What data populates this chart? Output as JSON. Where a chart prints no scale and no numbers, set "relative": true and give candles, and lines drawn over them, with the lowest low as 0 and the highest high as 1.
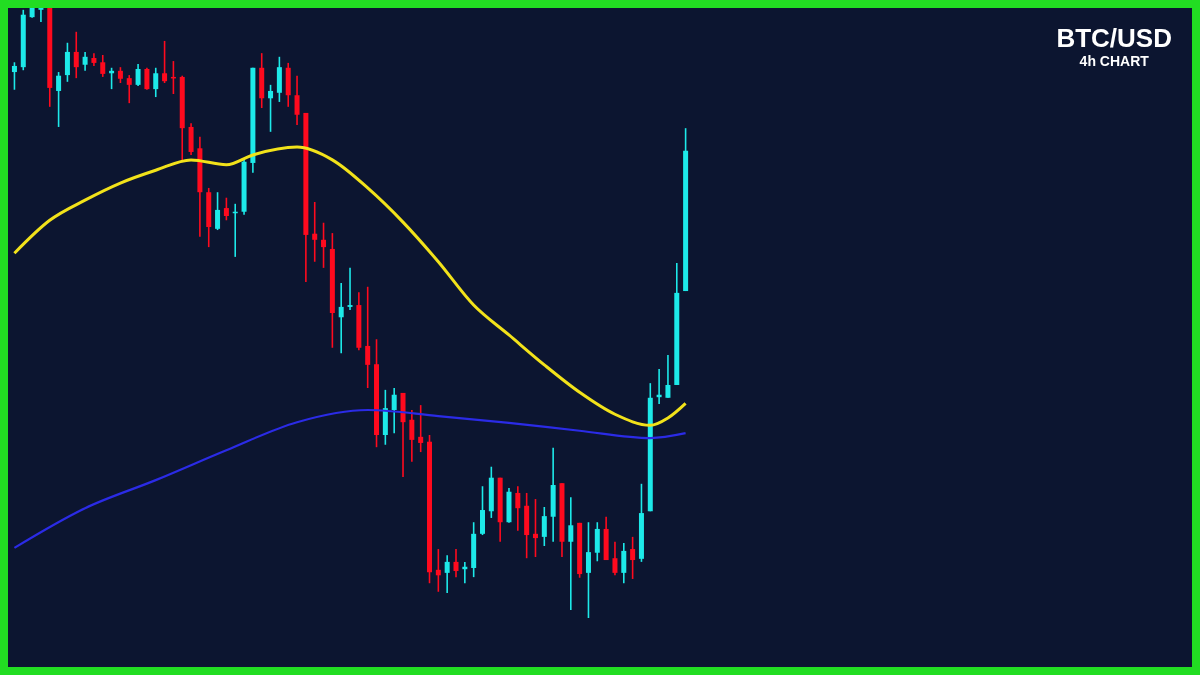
{
  "chart_data": {
    "type": "candlestick",
    "title": "BTC/USD",
    "subtitle": "4h CHART",
    "relative": true,
    "legend": false,
    "grid": false,
    "categories": [
      null,
      null,
      null,
      null,
      null,
      null,
      null,
      null,
      null,
      null,
      null,
      null,
      null,
      null,
      null,
      null,
      null,
      null,
      null,
      null,
      null,
      null,
      null,
      null,
      null,
      null,
      null,
      null,
      null,
      null,
      null,
      null,
      null,
      null,
      null,
      null,
      null,
      null,
      null,
      null,
      null,
      null,
      null,
      null,
      null,
      null,
      null,
      null,
      null,
      null,
      null,
      null,
      null,
      null,
      null,
      null,
      null,
      null,
      null,
      null,
      null,
      null,
      null,
      null,
      null,
      null,
      null,
      null,
      null,
      null,
      null,
      null,
      null,
      null,
      null,
      null,
      null
    ],
    "ohlc": [
      [
        0.895,
        0.911,
        0.866,
        0.905
      ],
      [
        0.903,
        0.997,
        0.898,
        0.989
      ],
      [
        0.985,
        1,
        0.984,
        1
      ],
      [
        0.997,
        1,
        0.977,
        1
      ],
      [
        1,
        1,
        0.838,
        0.869
      ],
      [
        0.864,
        0.895,
        0.805,
        0.889
      ],
      [
        0.89,
        0.943,
        0.879,
        0.928
      ],
      [
        0.928,
        0.961,
        0.885,
        0.903
      ],
      [
        0.907,
        0.928,
        0.897,
        0.92
      ],
      [
        0.918,
        0.926,
        0.905,
        0.91
      ],
      [
        0.911,
        0.923,
        0.887,
        0.892
      ],
      [
        0.893,
        0.902,
        0.867,
        0.897
      ],
      [
        0.897,
        0.903,
        0.877,
        0.884
      ],
      [
        0.885,
        0.89,
        0.844,
        0.874
      ],
      [
        0.874,
        0.908,
        0.872,
        0.9
      ],
      [
        0.9,
        0.902,
        0.866,
        0.867
      ],
      [
        0.867,
        0.902,
        0.854,
        0.893
      ],
      [
        0.893,
        0.946,
        0.877,
        0.88
      ],
      [
        0.887,
        0.913,
        0.859,
        0.885
      ],
      [
        0.887,
        0.889,
        0.748,
        0.803
      ],
      [
        0.805,
        0.811,
        0.759,
        0.764
      ],
      [
        0.77,
        0.789,
        0.625,
        0.698
      ],
      [
        0.698,
        0.705,
        0.608,
        0.641
      ],
      [
        0.638,
        0.698,
        0.636,
        0.669
      ],
      [
        0.672,
        0.689,
        0.652,
        0.659
      ],
      [
        0.664,
        0.679,
        0.592,
        0.666
      ],
      [
        0.666,
        0.754,
        0.661,
        0.748
      ],
      [
        0.746,
        0.902,
        0.73,
        0.902
      ],
      [
        0.902,
        0.926,
        0.836,
        0.852
      ],
      [
        0.852,
        0.874,
        0.797,
        0.864
      ],
      [
        0.861,
        0.92,
        0.846,
        0.903
      ],
      [
        0.902,
        0.91,
        0.838,
        0.857
      ],
      [
        0.857,
        0.889,
        0.808,
        0.825
      ],
      [
        0.828,
        0.828,
        0.551,
        0.628
      ],
      [
        0.63,
        0.682,
        0.584,
        0.62
      ],
      [
        0.62,
        0.648,
        0.574,
        0.608
      ],
      [
        0.605,
        0.631,
        0.443,
        0.5
      ],
      [
        0.493,
        0.549,
        0.434,
        0.51
      ],
      [
        0.51,
        0.574,
        0.505,
        0.513
      ],
      [
        0.513,
        0.534,
        0.439,
        0.443
      ],
      [
        0.446,
        0.543,
        0.377,
        0.415
      ],
      [
        0.416,
        0.457,
        0.28,
        0.3
      ],
      [
        0.3,
        0.374,
        0.284,
        0.344
      ],
      [
        0.341,
        0.377,
        0.303,
        0.366
      ],
      [
        0.369,
        0.369,
        0.231,
        0.321
      ],
      [
        0.325,
        0.341,
        0.256,
        0.292
      ],
      [
        0.297,
        0.349,
        0.272,
        0.287
      ],
      [
        0.289,
        0.3,
        0.057,
        0.075
      ],
      [
        0.079,
        0.113,
        0.043,
        0.07
      ],
      [
        0.074,
        0.103,
        0.041,
        0.092
      ],
      [
        0.092,
        0.113,
        0.067,
        0.077
      ],
      [
        0.08,
        0.092,
        0.057,
        0.084
      ],
      [
        0.082,
        0.157,
        0.067,
        0.138
      ],
      [
        0.138,
        0.216,
        0.136,
        0.177
      ],
      [
        0.175,
        0.248,
        0.164,
        0.23
      ],
      [
        0.23,
        0.23,
        0.125,
        0.157
      ],
      [
        0.157,
        0.213,
        0.156,
        0.207
      ],
      [
        0.205,
        0.216,
        0.143,
        0.18
      ],
      [
        0.184,
        0.205,
        0.098,
        0.136
      ],
      [
        0.138,
        0.195,
        0.1,
        0.131
      ],
      [
        0.133,
        0.182,
        0.118,
        0.167
      ],
      [
        0.166,
        0.279,
        0.125,
        0.218
      ],
      [
        0.221,
        0.221,
        0.1,
        0.125
      ],
      [
        0.125,
        0.198,
        0.013,
        0.152
      ],
      [
        0.156,
        0.156,
        0.066,
        0.072
      ],
      [
        0.074,
        0.157,
        0,
        0.108
      ],
      [
        0.107,
        0.157,
        0.093,
        0.146
      ],
      [
        0.146,
        0.166,
        0.095,
        0.095
      ],
      [
        0.098,
        0.125,
        0.07,
        0.074
      ],
      [
        0.074,
        0.123,
        0.057,
        0.11
      ],
      [
        0.113,
        0.133,
        0.064,
        0.095
      ],
      [
        0.097,
        0.22,
        0.092,
        0.172
      ],
      [
        0.175,
        0.385,
        0.175,
        0.361
      ],
      [
        0.362,
        0.408,
        0.351,
        0.366
      ],
      [
        0.361,
        0.431,
        0.361,
        0.382
      ],
      [
        0.382,
        0.582,
        0.382,
        0.533
      ],
      [
        0.536,
        0.803,
        0.536,
        0.766
      ]
    ],
    "colors": [
      "#1de9e9",
      "#1de9e9",
      "#1de9e9",
      "#1de9e9",
      "#ff0a1e",
      "#1de9e9",
      "#1de9e9",
      "#ff0a1e",
      "#1de9e9",
      "#ff0a1e",
      "#ff0a1e",
      "#1de9e9",
      "#ff0a1e",
      "#ff0a1e",
      "#1de9e9",
      "#ff0a1e",
      "#1de9e9",
      "#ff0a1e",
      "#ff0a1e",
      "#ff0a1e",
      "#ff0a1e",
      "#ff0a1e",
      "#ff0a1e",
      "#1de9e9",
      "#ff0a1e",
      "#1de9e9",
      "#1de9e9",
      "#1de9e9",
      "#ff0a1e",
      "#1de9e9",
      "#1de9e9",
      "#ff0a1e",
      "#ff0a1e",
      "#ff0a1e",
      "#ff0a1e",
      "#ff0a1e",
      "#ff0a1e",
      "#1de9e9",
      "#1de9e9",
      "#ff0a1e",
      "#ff0a1e",
      "#ff0a1e",
      "#1de9e9",
      "#1de9e9",
      "#ff0a1e",
      "#ff0a1e",
      "#ff0a1e",
      "#ff0a1e",
      "#ff0a1e",
      "#1de9e9",
      "#ff0a1e",
      "#1de9e9",
      "#1de9e9",
      "#1de9e9",
      "#1de9e9",
      "#ff0a1e",
      "#1de9e9",
      "#ff0a1e",
      "#ff0a1e",
      "#ff0a1e",
      "#1de9e9",
      "#1de9e9",
      "#ff0a1e",
      "#1de9e9",
      "#ff0a1e",
      "#1de9e9",
      "#1de9e9",
      "#ff0a1e",
      "#ff0a1e",
      "#1de9e9",
      "#ff0a1e",
      "#1de9e9",
      "#1de9e9",
      "#1de9e9",
      "#1de9e9",
      "#1de9e9",
      "#1de9e9"
    ],
    "series": [
      {
        "type": "line",
        "color": "#f2e21a",
        "values": [
          0.598,
          null,
          null,
          null,
          0.652,
          null,
          null,
          null,
          0.685,
          null,
          null,
          null,
          0.713,
          null,
          null,
          null,
          0.734,
          null,
          null,
          null,
          0.751,
          null,
          null,
          null,
          0.743,
          null,
          null,
          0.759,
          null,
          null,
          null,
          null,
          0.772,
          null,
          null,
          null,
          0.751,
          null,
          null,
          null,
          0.705,
          null,
          null,
          null,
          0.649,
          null,
          null,
          null,
          0.584,
          null,
          null,
          null,
          0.513,
          null,
          null,
          null,
          0.464,
          null,
          null,
          null,
          0.415,
          null,
          null,
          null,
          0.37,
          null,
          null,
          null,
          0.334,
          null,
          null,
          null,
          0.316,
          null,
          0.328,
          null,
          0.352
        ]
      },
      {
        "type": "line",
        "color": "#2b2be6",
        "values": [
          0.115,
          null,
          null,
          null,
          null,
          null,
          null,
          null,
          0.18,
          null,
          null,
          null,
          null,
          null,
          null,
          null,
          0.226,
          null,
          null,
          null,
          null,
          null,
          null,
          null,
          0.275,
          null,
          null,
          null,
          null,
          null,
          null,
          null,
          0.321,
          null,
          null,
          null,
          null,
          null,
          null,
          null,
          0.341,
          null,
          null,
          null,
          null,
          null,
          null,
          null,
          0.331,
          null,
          null,
          null,
          null,
          null,
          null,
          null,
          0.32,
          null,
          null,
          null,
          null,
          null,
          null,
          null,
          0.307,
          null,
          null,
          null,
          null,
          null,
          null,
          null,
          0.295,
          null,
          null,
          null,
          0.303
        ]
      }
    ]
  }
}
